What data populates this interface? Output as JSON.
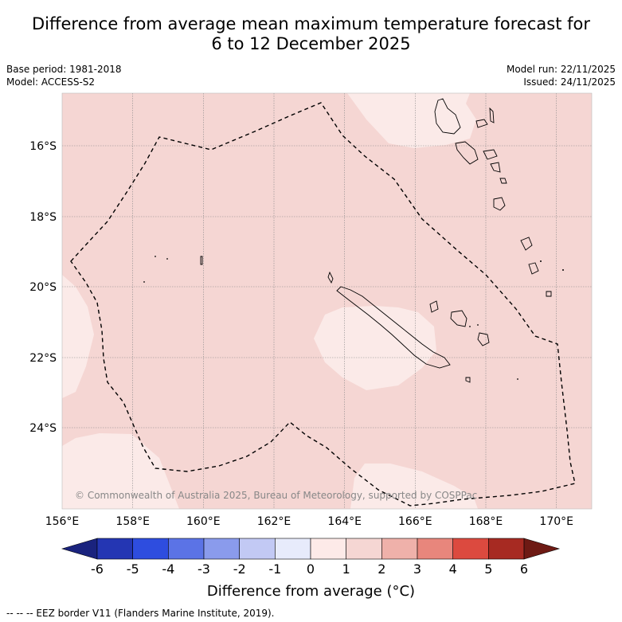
{
  "title": {
    "line1": "Difference from average mean maximum temperature forecast for",
    "line2": "6 to 12 December 2025"
  },
  "meta": {
    "base_period": "Base period: 1981-2018",
    "model": "Model: ACCESS-S2",
    "model_run": "Model run: 22/11/2025",
    "issued": "Issued: 24/11/2025"
  },
  "map": {
    "lon_labels": [
      "156°E",
      "158°E",
      "160°E",
      "162°E",
      "164°E",
      "166°E",
      "168°E",
      "170°E"
    ],
    "lat_labels": [
      "16°S",
      "18°S",
      "20°S",
      "22°S",
      "24°S"
    ],
    "copyright": "© Commonwealth of Australia 2025, Bureau of Meteorology, supported by COSPPac",
    "colors": {
      "anomaly_1_2": "#f5d6d3",
      "anomaly_0_1": "#fbeae8",
      "grid": "#888888",
      "eez": "#000000"
    }
  },
  "colorbar": {
    "ticks": [
      "-6",
      "-5",
      "-4",
      "-3",
      "-2",
      "-1",
      "0",
      "1",
      "2",
      "3",
      "4",
      "5",
      "6"
    ],
    "colors": [
      "#1a237e",
      "#2436b3",
      "#2e4ddf",
      "#5b73e6",
      "#8a9bec",
      "#c2c9f4",
      "#e7ebfb",
      "#fdeae8",
      "#f5d6d3",
      "#efb1aa",
      "#e8867c",
      "#dc4a3f",
      "#a72a22",
      "#6e1a14"
    ],
    "label": "Difference from average (°C)"
  },
  "footnote": "-- -- -- EEZ border V11 (Flanders Marine Institute, 2019)."
}
